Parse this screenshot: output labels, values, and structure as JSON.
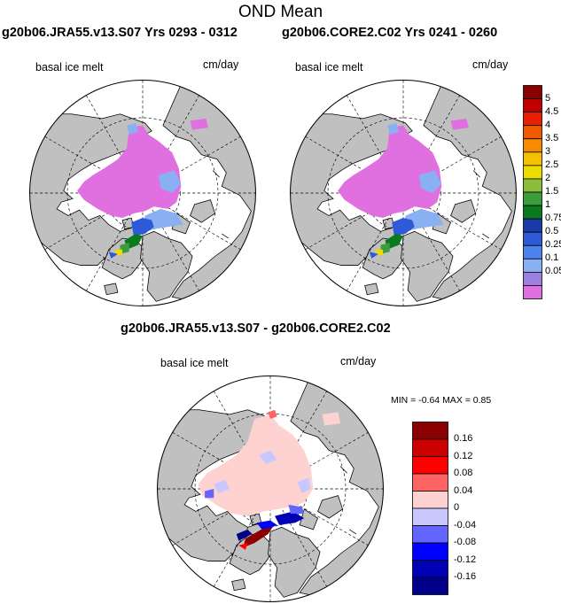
{
  "title": "OND Mean",
  "panels": [
    {
      "id": "a",
      "title": "g20b06.JRA55.v13.S07  Yrs 0293 - 0312",
      "variable": "basal ice melt",
      "units": "cm/day"
    },
    {
      "id": "b",
      "title": "g20b06.CORE2.C02  Yrs 0241 - 0260",
      "variable": "basal ice melt",
      "units": "cm/day"
    },
    {
      "id": "diff",
      "title": "g20b06.JRA55.v13.S07 - g20b06.CORE2.C02",
      "variable": "basal ice melt",
      "units": "cm/day",
      "minmax": "MIN =  -0.64 MAX =   0.85"
    }
  ],
  "colorbar_main": {
    "labels": [
      "5",
      "4.5",
      "4",
      "3.5",
      "3",
      "2.5",
      "2",
      "1.5",
      "1",
      "0.75",
      "0.5",
      "0.25",
      "0.1",
      "0.05"
    ],
    "colors": [
      "#8b0000",
      "#c00000",
      "#e82000",
      "#f05a00",
      "#f88a00",
      "#f4c000",
      "#ecdc00",
      "#8cbc3c",
      "#3c9c3c",
      "#0a7a1e",
      "#1a3aa8",
      "#2c5ad8",
      "#4c84ec",
      "#8ab0f4",
      "#9c80e0",
      "#e070e0"
    ]
  },
  "colorbar_diff": {
    "labels": [
      "0.16",
      "0.12",
      "0.08",
      "0.04",
      "0",
      "-0.04",
      "-0.08",
      "-0.12",
      "-0.16"
    ],
    "colors": [
      "#8b0000",
      "#cc0000",
      "#ff0000",
      "#ff6464",
      "#ffd2d2",
      "#c8c8ff",
      "#6464ff",
      "#0000ff",
      "#0000b4",
      "#00008b"
    ]
  },
  "map_colors": {
    "land": "#c0c0c0",
    "ocean": "#ffffff",
    "ice_low": "#e070e0",
    "ice_mid": "#8ab0f4",
    "diff_near_zero": "#ffd2d2"
  }
}
